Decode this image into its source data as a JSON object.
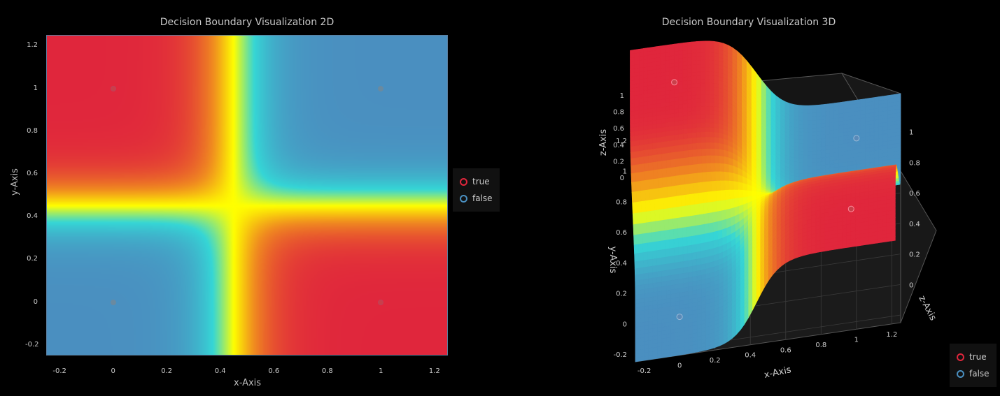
{
  "chart_data": [
    {
      "type": "heatmap",
      "title": "Decision Boundary Visualization 2D",
      "xlabel": "x-Axis",
      "ylabel": "y-Axis",
      "xlim": [
        -0.25,
        1.25
      ],
      "ylim": [
        -0.25,
        1.25
      ],
      "xticks": [
        "-0.2",
        "0",
        "0.2",
        "0.4",
        "0.6",
        "0.8",
        "1",
        "1.2"
      ],
      "yticks": [
        "-0.2",
        "0",
        "0.2",
        "0.4",
        "0.6",
        "0.8",
        "1",
        "1.2"
      ],
      "colorscale": [
        "#4a8fc0",
        "#35d6d6",
        "#ffff00",
        "#f08a20",
        "#e0263c"
      ],
      "points": [
        {
          "x": 0,
          "y": 1,
          "label": "true"
        },
        {
          "x": 1,
          "y": 1,
          "label": "false"
        },
        {
          "x": 0,
          "y": 0,
          "label": "false"
        },
        {
          "x": 1,
          "y": 0,
          "label": "true"
        }
      ],
      "legend": [
        {
          "name": "true",
          "color": "#e0263c"
        },
        {
          "name": "false",
          "color": "#4a8fc0"
        }
      ]
    },
    {
      "type": "surface",
      "title": "Decision Boundary Visualization 3D",
      "xlabel": "x-Axis",
      "ylabel": "y-Axis",
      "zlabel": "z-Axis",
      "xticks": [
        "-0.2",
        "0",
        "0.2",
        "0.4",
        "0.6",
        "0.8",
        "1",
        "1.2"
      ],
      "yticks": [
        "-0.2",
        "0",
        "0.2",
        "0.4",
        "0.6",
        "0.8",
        "1",
        "1.2"
      ],
      "zticks": [
        "0",
        "0.2",
        "0.4",
        "0.6",
        "0.8",
        "1"
      ],
      "legend": [
        {
          "name": "true",
          "color": "#e0263c"
        },
        {
          "name": "false",
          "color": "#4a8fc0"
        }
      ]
    }
  ]
}
